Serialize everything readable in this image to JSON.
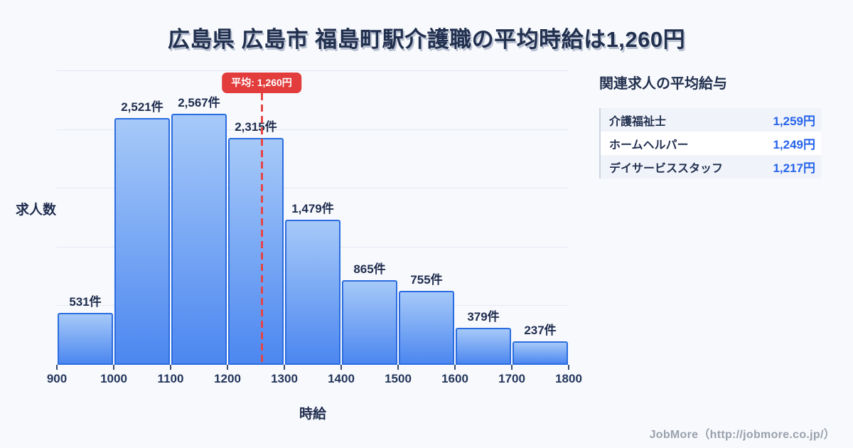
{
  "title": "広島県 広島市 福島町駅介護職の平均時給は1,260円",
  "chart_data": {
    "type": "bar",
    "subtype": "histogram",
    "title": "広島県 広島市 福島町駅介護職の平均時給は1,260円",
    "xlabel": "時給",
    "ylabel": "求人数",
    "bin_edges": [
      900,
      1000,
      1100,
      1200,
      1300,
      1400,
      1500,
      1600,
      1700,
      1800
    ],
    "x_ticks": [
      "900",
      "1000",
      "1100",
      "1200",
      "1300",
      "1400",
      "1500",
      "1600",
      "1700",
      "1800"
    ],
    "values": [
      531,
      2521,
      2567,
      2315,
      1479,
      865,
      755,
      379,
      237
    ],
    "bar_labels": [
      "531件",
      "2,521件",
      "2,567件",
      "2,315件",
      "1,479件",
      "865件",
      "755件",
      "379件",
      "237件"
    ],
    "unit_suffix": "件",
    "ylim": [
      0,
      3000
    ],
    "gridline_values": [
      600,
      1200,
      1800,
      2400,
      3000
    ],
    "grid": true,
    "legend_position": "none",
    "average": {
      "value": 1260,
      "label": "平均: 1,260円"
    },
    "colors": {
      "bar_fill_top": "#a6c9f8",
      "bar_fill_bottom": "#4c87f0",
      "bar_border": "#2a6ce0",
      "average_line": "#e64545",
      "average_badge_bg": "#e23c3c",
      "grid": "#e3e8f3",
      "label_text": "#1f2c4e",
      "value_accent": "#2563eb"
    }
  },
  "related_jobs_panel": {
    "title": "関連求人の平均給与",
    "rows": [
      {
        "label": "介護福祉士",
        "value": "1,259円"
      },
      {
        "label": "ホームヘルパー",
        "value": "1,249円"
      },
      {
        "label": "デイサービススタッフ",
        "value": "1,217円"
      }
    ]
  },
  "footer": {
    "credit": "JobMore（http://jobmore.co.jp/）"
  }
}
